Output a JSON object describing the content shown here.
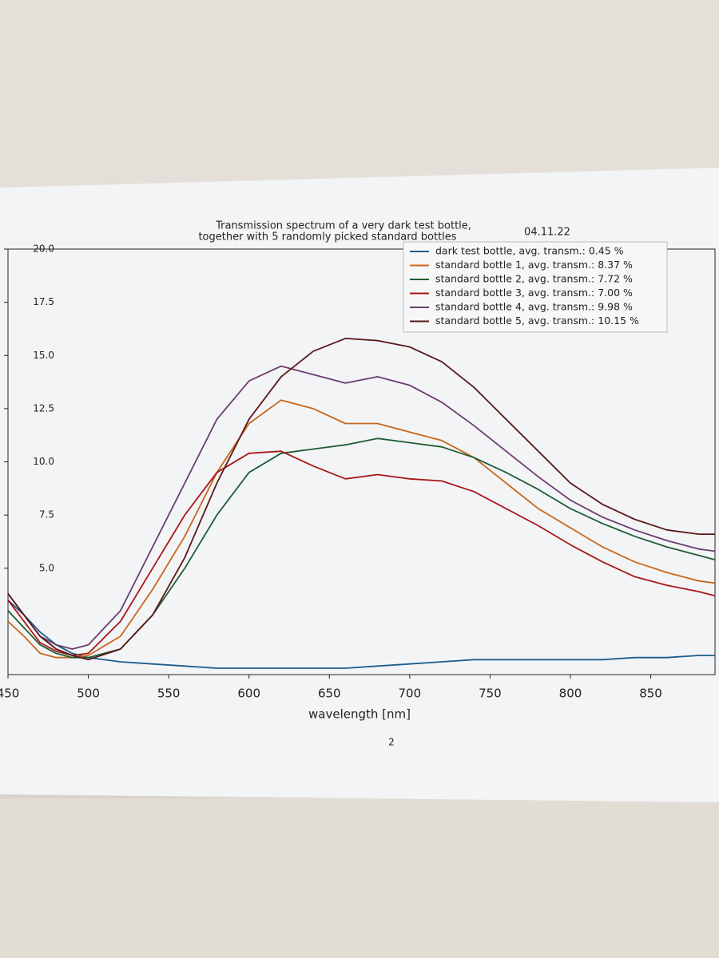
{
  "chart_data": {
    "type": "line",
    "title": "Transmission spectrum of a very dark test bottle,",
    "subtitle": "together with 5 randomly picked standard bottles",
    "date": "04.11.22",
    "xlabel": "wavelength [nm]",
    "page_number": "2",
    "x": [
      450,
      460,
      470,
      480,
      490,
      500,
      520,
      540,
      560,
      580,
      600,
      620,
      640,
      660,
      680,
      700,
      720,
      740,
      760,
      780,
      800,
      820,
      840,
      860,
      880,
      890
    ],
    "series": [
      {
        "name": "dark test bottle, avg. transm.: 0.45 %",
        "color": "#1b5c8c",
        "values": [
          3.5,
          2.8,
          2.0,
          1.4,
          1.0,
          0.8,
          0.6,
          0.5,
          0.4,
          0.3,
          0.3,
          0.3,
          0.3,
          0.3,
          0.4,
          0.5,
          0.6,
          0.7,
          0.7,
          0.7,
          0.7,
          0.7,
          0.8,
          0.8,
          0.9,
          0.9
        ]
      },
      {
        "name": "standard bottle 1, avg. transm.: 8.37 %",
        "color": "#c8661a",
        "values": [
          2.5,
          1.8,
          1.0,
          0.8,
          0.8,
          0.9,
          1.8,
          4.0,
          6.5,
          9.5,
          11.8,
          12.9,
          12.5,
          11.8,
          11.8,
          11.4,
          11.0,
          10.2,
          9.0,
          7.8,
          6.9,
          6.0,
          5.3,
          4.8,
          4.4,
          4.3
        ]
      },
      {
        "name": "standard bottle 2, avg. transm.: 7.72 %",
        "color": "#1e5e32",
        "values": [
          3.0,
          2.2,
          1.4,
          1.0,
          0.8,
          0.8,
          1.2,
          2.8,
          5.0,
          7.5,
          9.5,
          10.4,
          10.6,
          10.8,
          11.1,
          10.9,
          10.7,
          10.2,
          9.5,
          8.7,
          7.8,
          7.1,
          6.5,
          6.0,
          5.6,
          5.4
        ]
      },
      {
        "name": "standard bottle 3, avg. transm.: 7.00 %",
        "color": "#a81818",
        "values": [
          3.5,
          2.5,
          1.5,
          1.1,
          0.9,
          1.0,
          2.5,
          5.0,
          7.5,
          9.5,
          10.4,
          10.5,
          9.8,
          9.2,
          9.4,
          9.2,
          9.1,
          8.6,
          7.8,
          7.0,
          6.1,
          5.3,
          4.6,
          4.2,
          3.9,
          3.7
        ]
      },
      {
        "name": "standard bottle 4, avg. transm.: 9.98 %",
        "color": "#6a3d6e",
        "values": [
          3.8,
          2.8,
          1.8,
          1.4,
          1.2,
          1.4,
          3.0,
          6.0,
          9.0,
          12.0,
          13.8,
          14.5,
          14.1,
          13.7,
          14.0,
          13.6,
          12.8,
          11.7,
          10.5,
          9.3,
          8.2,
          7.4,
          6.8,
          6.3,
          5.9,
          5.8
        ]
      },
      {
        "name": "standard bottle 5, avg. transm.: 10.15 %",
        "color": "#5a1818",
        "values": [
          3.8,
          2.8,
          1.8,
          1.2,
          0.9,
          0.7,
          1.2,
          2.8,
          5.5,
          9.0,
          12.0,
          14.0,
          15.2,
          15.8,
          15.7,
          15.4,
          14.7,
          13.5,
          12.0,
          10.5,
          9.0,
          8.0,
          7.3,
          6.8,
          6.6,
          6.6
        ]
      }
    ],
    "xlim": [
      450,
      890
    ],
    "xticks": [
      450,
      500,
      550,
      600,
      650,
      700,
      750,
      800,
      850
    ],
    "ylim": [
      0,
      20
    ],
    "yticks": [
      {
        "value": 5,
        "label": "5.0"
      },
      {
        "value": 7.5,
        "label": "7.5"
      },
      {
        "value": 10,
        "label": "10.0"
      },
      {
        "value": 12.5,
        "label": "12.5"
      },
      {
        "value": 15,
        "label": "15.0"
      },
      {
        "value": 17.5,
        "label": "17.5"
      },
      {
        "value": 20,
        "label": "20.0"
      }
    ],
    "grid": false,
    "legend": "upper right"
  }
}
